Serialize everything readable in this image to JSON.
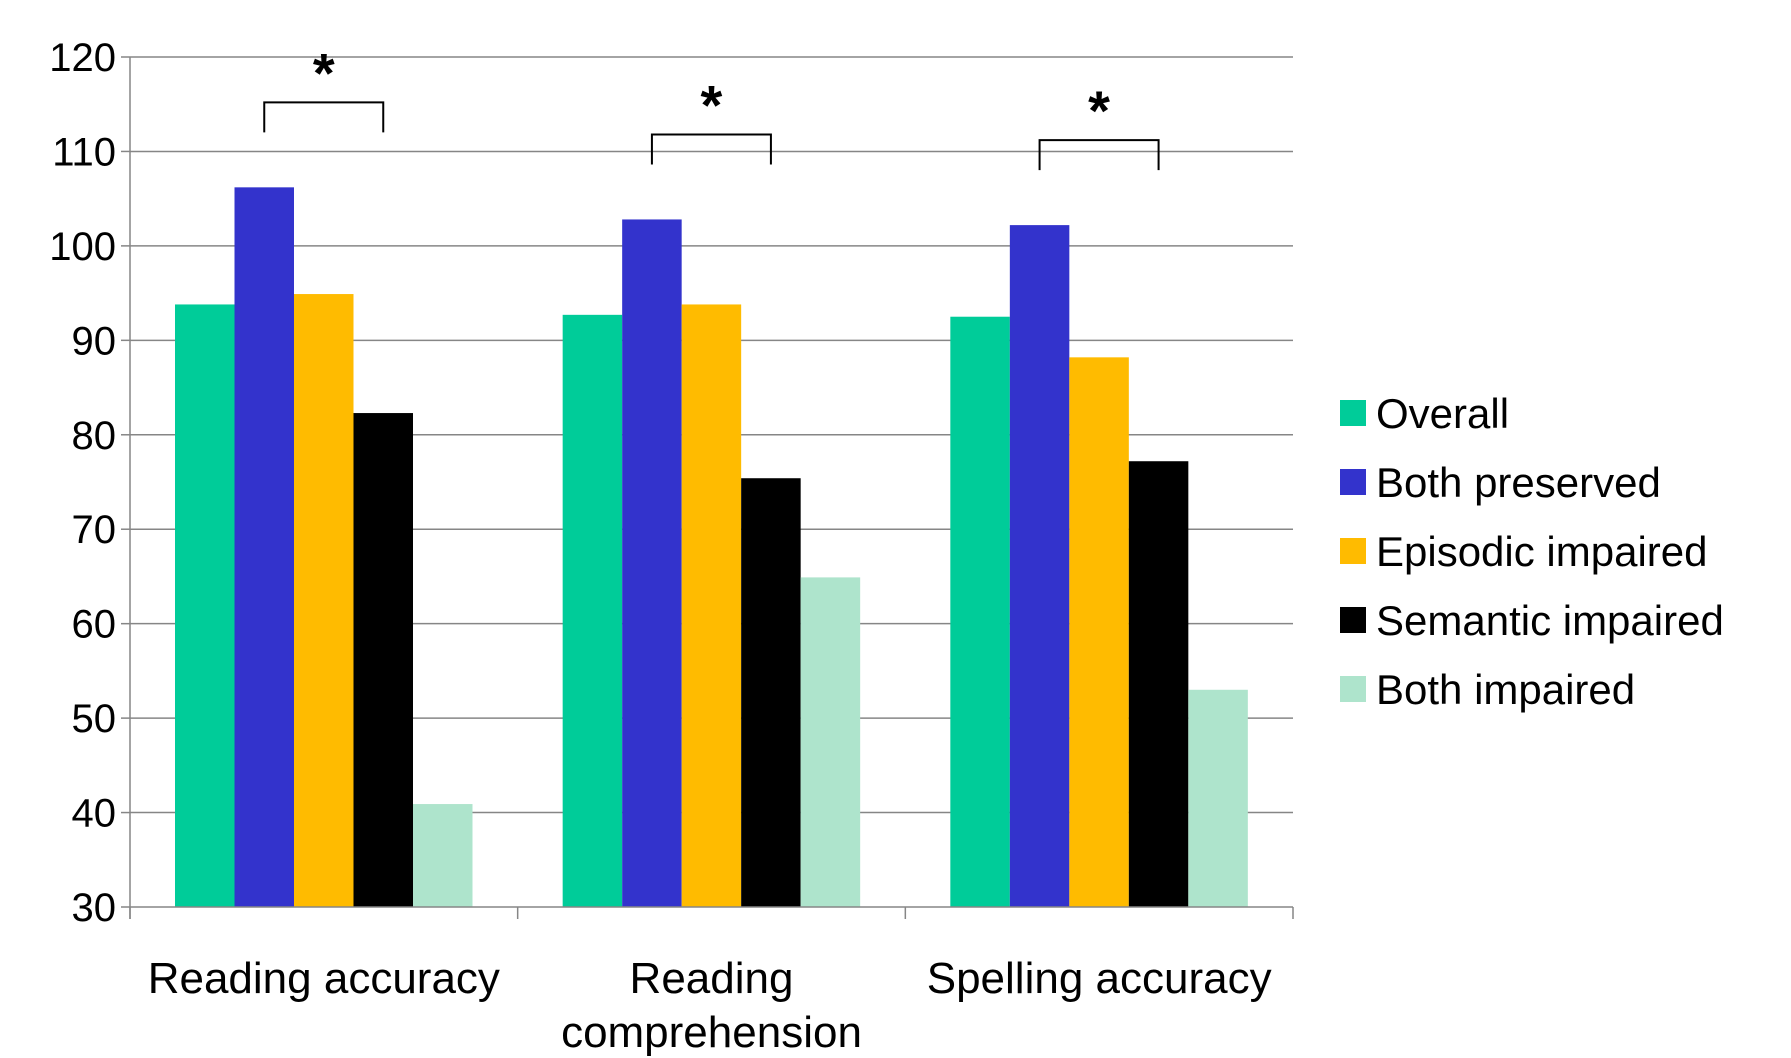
{
  "chart_data": {
    "type": "bar",
    "categories": [
      [
        "Reading accuracy"
      ],
      [
        "Reading",
        "comprehension"
      ],
      [
        "Spelling accuracy"
      ]
    ],
    "series": [
      {
        "name": "Overall",
        "color": "#00CC99",
        "values": [
          93.8,
          92.7,
          92.5
        ]
      },
      {
        "name": "Both preserved",
        "color": "#3333CC",
        "values": [
          106.2,
          102.8,
          102.2
        ]
      },
      {
        "name": "Episodic impaired",
        "color": "#FFBB00",
        "values": [
          94.9,
          93.8,
          88.2
        ]
      },
      {
        "name": "Semantic impaired",
        "color": "#000000",
        "values": [
          82.3,
          75.4,
          77.2
        ]
      },
      {
        "name": "Both impaired",
        "color": "#AEE4CC",
        "values": [
          40.9,
          64.9,
          53.0
        ]
      }
    ],
    "ylim": [
      30,
      120
    ],
    "yticks": [
      30,
      40,
      50,
      60,
      70,
      80,
      90,
      100,
      110,
      120
    ],
    "grid": true,
    "legend": "right",
    "significance": [
      {
        "category": 0,
        "between": [
          1,
          3
        ],
        "label": "*"
      },
      {
        "category": 1,
        "between": [
          1,
          3
        ],
        "label": "*"
      },
      {
        "category": 2,
        "between": [
          1,
          3
        ],
        "label": "*"
      }
    ]
  }
}
